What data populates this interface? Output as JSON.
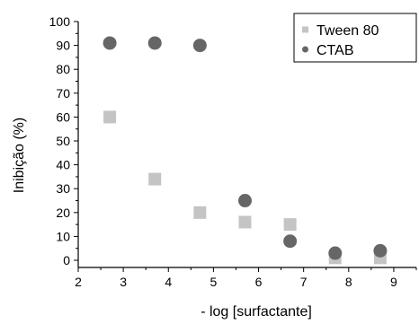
{
  "chart_data": {
    "type": "scatter",
    "xlabel": "- log [surfactante]",
    "ylabel": "Inibição (%)",
    "xlim": [
      2,
      9.5
    ],
    "ylim": [
      -3,
      100
    ],
    "x_ticks": [
      2,
      3,
      4,
      5,
      6,
      7,
      8,
      9
    ],
    "y_ticks": [
      0,
      10,
      20,
      30,
      40,
      50,
      60,
      70,
      80,
      90,
      100
    ],
    "legend": {
      "placement": "top-right"
    },
    "series": [
      {
        "name": "Tween 80",
        "marker": "square",
        "color": "#c4c4c4",
        "points": [
          [
            2.7,
            60
          ],
          [
            3.7,
            34
          ],
          [
            4.7,
            20
          ],
          [
            5.7,
            16
          ],
          [
            6.7,
            15
          ],
          [
            7.7,
            1
          ],
          [
            8.7,
            1
          ]
        ]
      },
      {
        "name": "CTAB",
        "marker": "circle",
        "color": "#666666",
        "points": [
          [
            2.7,
            91
          ],
          [
            3.7,
            91
          ],
          [
            4.7,
            90
          ],
          [
            5.7,
            25
          ],
          [
            6.7,
            8
          ],
          [
            7.7,
            3
          ],
          [
            8.7,
            4
          ]
        ]
      }
    ]
  }
}
